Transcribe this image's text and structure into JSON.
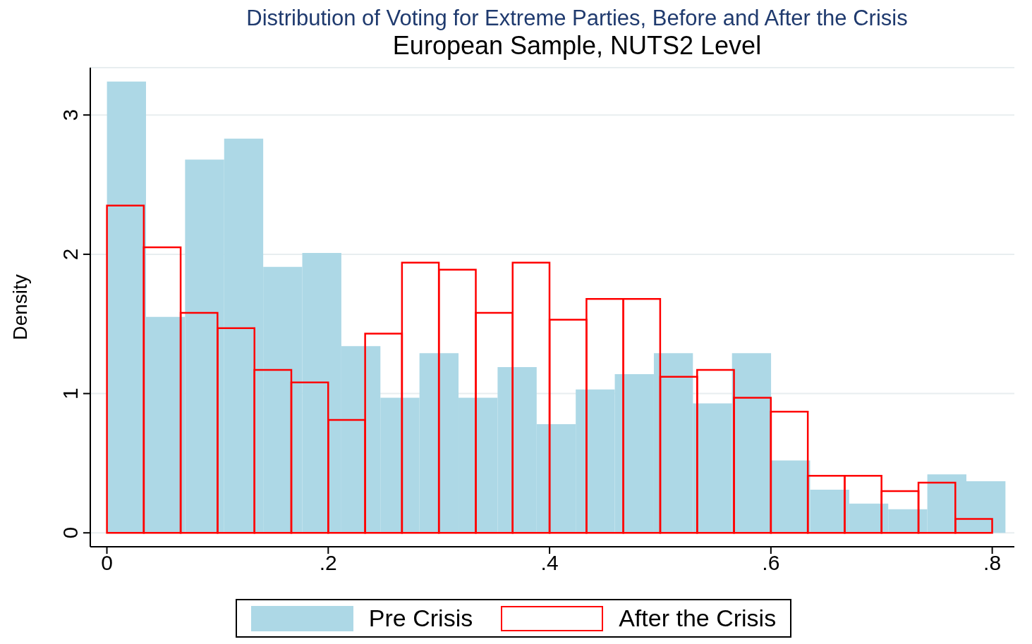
{
  "chart_data": {
    "type": "bar",
    "title": "Distribution of Voting for Extreme Parties, Before and After the Crisis",
    "subtitle": "European Sample, NUTS2 Level",
    "ylabel": "Density",
    "series": [
      {
        "name": "Pre Crisis",
        "color": "#add8e6",
        "x": [
          0.0177,
          0.053,
          0.0883,
          0.1236,
          0.1589,
          0.1942,
          0.2295,
          0.2648,
          0.3001,
          0.3354,
          0.3707,
          0.406,
          0.4413,
          0.4766,
          0.5119,
          0.5472,
          0.5825,
          0.6178,
          0.6531,
          0.6884,
          0.7237,
          0.759,
          0.7943
        ],
        "values": [
          3.24,
          1.55,
          2.68,
          2.83,
          1.91,
          2.01,
          1.34,
          0.97,
          1.29,
          0.97,
          1.19,
          0.78,
          1.03,
          1.14,
          1.29,
          0.93,
          1.29,
          0.52,
          0.31,
          0.21,
          0.17,
          0.42,
          0.37
        ]
      },
      {
        "name": "After the Crisis",
        "color": "#ff0000",
        "x": [
          0.0167,
          0.05,
          0.0833,
          0.1167,
          0.15,
          0.1833,
          0.2167,
          0.25,
          0.2833,
          0.3167,
          0.35,
          0.3833,
          0.4167,
          0.45,
          0.4833,
          0.5167,
          0.55,
          0.5833,
          0.6167,
          0.65,
          0.6833,
          0.7167,
          0.75,
          0.7833
        ],
        "values": [
          2.35,
          2.05,
          1.58,
          1.47,
          1.17,
          1.08,
          0.81,
          1.43,
          1.94,
          1.89,
          1.58,
          1.94,
          1.53,
          1.68,
          1.68,
          1.12,
          1.17,
          0.97,
          0.87,
          0.41,
          0.41,
          0.3,
          0.36,
          0.1
        ]
      }
    ],
    "xlim": [
      -0.015,
      0.82
    ],
    "xticks": [
      {
        "value": 0,
        "label": "0"
      },
      {
        "value": 0.2,
        "label": ".2"
      },
      {
        "value": 0.4,
        "label": ".4"
      },
      {
        "value": 0.6,
        "label": ".6"
      },
      {
        "value": 0.8,
        "label": ".8"
      }
    ],
    "ylim": [
      -0.1,
      3.34
    ],
    "yticks": [
      0,
      1,
      2,
      3
    ],
    "grid": "y",
    "legend": "bottom"
  }
}
